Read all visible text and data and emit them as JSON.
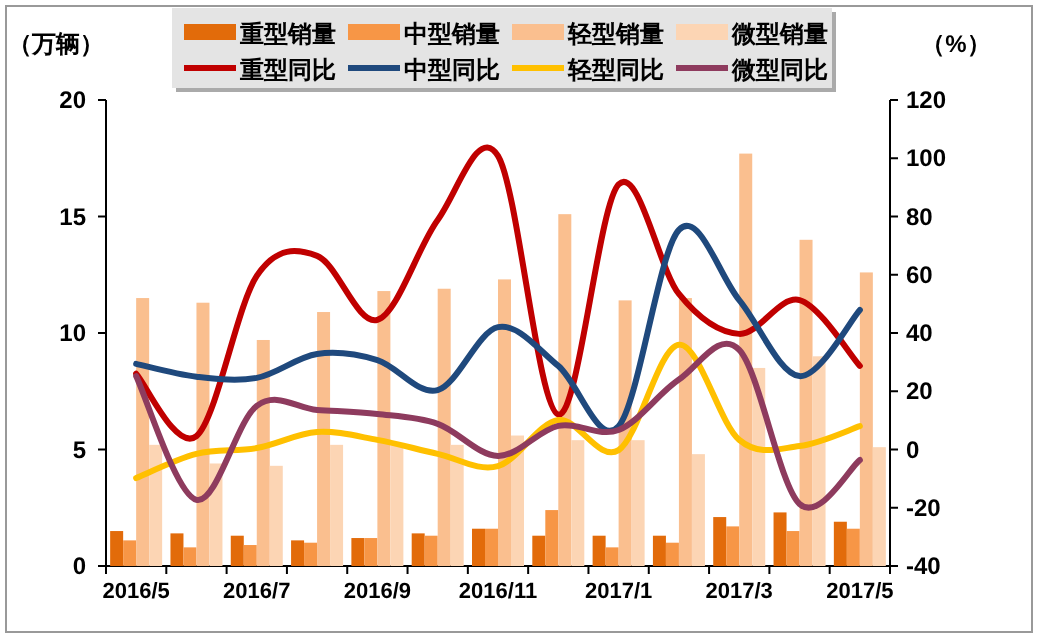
{
  "chart_data": {
    "type": "bar",
    "ylabel": "（万辆）",
    "y2label": "（%）",
    "categories": [
      "2016/5",
      null,
      "2016/7",
      null,
      "2016/9",
      null,
      "2016/11",
      null,
      "2017/1",
      null,
      "2017/3",
      null,
      "2017/5"
    ],
    "ylim": [
      0,
      20
    ],
    "yticks": [
      0,
      5,
      10,
      15,
      20
    ],
    "y2lim": [
      -40,
      120
    ],
    "y2ticks": [
      -40,
      -20,
      0,
      20,
      40,
      60,
      80,
      100,
      120
    ],
    "legend": "top",
    "grid": false,
    "series": [
      {
        "name": "重型销量",
        "color": "#e26b0a",
        "values": [
          1.5,
          1.4,
          1.3,
          1.1,
          1.2,
          1.4,
          1.6,
          1.3,
          1.3,
          1.3,
          2.1,
          2.3,
          1.9
        ]
      },
      {
        "name": "中型销量",
        "color": "#f79646",
        "values": [
          1.1,
          0.8,
          0.9,
          1.0,
          1.2,
          1.3,
          1.6,
          2.4,
          0.8,
          1.0,
          1.7,
          1.5,
          1.6
        ]
      },
      {
        "name": "轻型销量",
        "color": "#fabf8f",
        "values": [
          11.5,
          11.3,
          9.7,
          10.9,
          11.8,
          11.9,
          12.3,
          15.1,
          11.4,
          11.5,
          17.7,
          14.0,
          12.6
        ]
      },
      {
        "name": "微型销量",
        "color": "#fcd5b4",
        "values": [
          5.2,
          4.4,
          4.3,
          5.2,
          5.2,
          5.2,
          5.6,
          5.4,
          5.4,
          4.8,
          8.5,
          9.0,
          5.1
        ]
      },
      {
        "name": "重型同比",
        "type": "line",
        "axis": "y2",
        "color": "#c00000",
        "values": [
          26,
          4.6,
          59.6,
          66.5,
          44.5,
          78.8,
          100.8,
          12,
          91,
          53.4,
          39.7,
          51.3,
          28.7
        ]
      },
      {
        "name": "中型同比",
        "type": "line",
        "axis": "y2",
        "color": "#1f497d",
        "values": [
          29.4,
          25,
          24.6,
          32.8,
          30.7,
          20.4,
          42,
          28.7,
          8,
          75.4,
          51.3,
          25.2,
          47.9
        ]
      },
      {
        "name": "轻型同比",
        "type": "line",
        "axis": "y2",
        "color": "#ffc000",
        "values": [
          -9.8,
          -1.5,
          0.5,
          6,
          3.3,
          -1.5,
          -5.7,
          10.1,
          -0.2,
          36,
          3.3,
          1.2,
          8
        ]
      },
      {
        "name": "微型同比",
        "type": "line",
        "axis": "y2",
        "color": "#8e3b5e",
        "values": [
          25.2,
          -17.3,
          15,
          13.6,
          12.2,
          8.8,
          -2.2,
          8.1,
          6.7,
          24,
          34.2,
          -18.7,
          -3.6
        ]
      }
    ]
  }
}
